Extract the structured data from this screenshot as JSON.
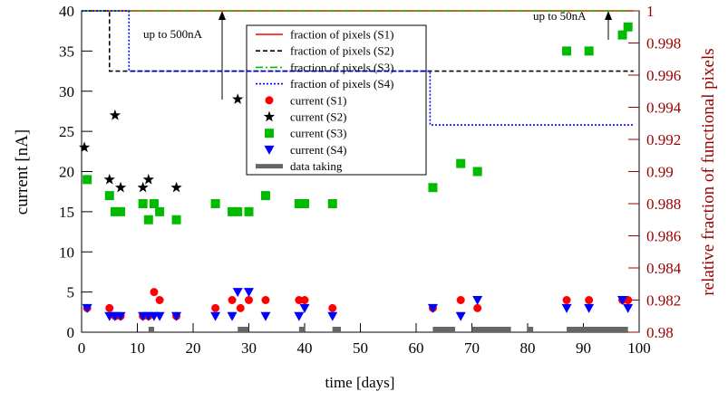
{
  "chart_data": {
    "type": "scatter",
    "xlabel": "time [days]",
    "ylabel": "current [nA]",
    "y2label": "relative fraction of functional pixels",
    "xlim": [
      0,
      100
    ],
    "xticks": [
      0,
      10,
      20,
      30,
      40,
      50,
      60,
      70,
      80,
      90,
      100
    ],
    "ylim": [
      0,
      40
    ],
    "yticks": [
      0,
      5,
      10,
      15,
      20,
      25,
      30,
      35,
      40
    ],
    "y2lim": [
      0.98,
      1
    ],
    "y2ticks": [
      0.98,
      0.982,
      0.984,
      0.986,
      0.988,
      0.99,
      0.992,
      0.994,
      0.996,
      0.998,
      1
    ],
    "y2color": "#990000",
    "annotations": [
      "up to 500nA",
      "up to 50nA"
    ],
    "series": [
      {
        "name": "fraction of pixels (S1)",
        "mark": "line",
        "dash": "solid",
        "color": "#ff0000",
        "axis": "y2",
        "x": [
          0,
          99
        ],
        "values": [
          1,
          1
        ]
      },
      {
        "name": "fraction of pixels (S2)",
        "mark": "line",
        "dash": "dashed",
        "color": "#000000",
        "axis": "y2",
        "x": [
          0,
          5,
          5,
          99
        ],
        "values": [
          1,
          1,
          0.99625,
          0.99625
        ]
      },
      {
        "name": "fraction of pixels (S3)",
        "mark": "line",
        "dash": "dashdot",
        "color": "#00bb00",
        "axis": "y2",
        "x": [
          0,
          99
        ],
        "values": [
          1,
          1
        ]
      },
      {
        "name": "fraction of pixels (S4)",
        "mark": "line",
        "dash": "dotted",
        "color": "#0000ff",
        "axis": "y2",
        "x": [
          0,
          8.5,
          8.5,
          62.5,
          62.5,
          99
        ],
        "values": [
          1,
          1,
          0.99625,
          0.99625,
          0.9929,
          0.9929
        ]
      },
      {
        "name": "current (S1)",
        "mark": "circle",
        "color": "#ff0000",
        "x": [
          1,
          5,
          6,
          7,
          11,
          12,
          13,
          14,
          17,
          24,
          27,
          28.5,
          30,
          33,
          39,
          40,
          45,
          63,
          68,
          71,
          87,
          91,
          97,
          98
        ],
        "values": [
          3,
          3,
          2,
          2,
          2,
          2,
          5,
          4,
          2,
          3,
          4,
          3,
          4,
          4,
          4,
          4,
          3,
          3,
          4,
          3,
          4,
          4,
          4,
          4
        ]
      },
      {
        "name": "current (S2)",
        "mark": "star",
        "color": "#000000",
        "x": [
          0.5,
          5,
          6,
          7,
          11,
          12,
          17,
          28
        ],
        "values": [
          23,
          19,
          27,
          18,
          18,
          19,
          18,
          29
        ]
      },
      {
        "name": "current (S3)",
        "mark": "square",
        "color": "#00bb00",
        "x": [
          1,
          5,
          6,
          7,
          11,
          12,
          13,
          14,
          17,
          24,
          27,
          28,
          30,
          33,
          39,
          40,
          45,
          63,
          68,
          71,
          87,
          91,
          97,
          98
        ],
        "values": [
          19,
          17,
          15,
          15,
          16,
          14,
          16,
          15,
          14,
          16,
          15,
          15,
          15,
          17,
          16,
          16,
          16,
          18,
          21,
          20,
          35,
          35,
          37,
          38
        ]
      },
      {
        "name": "current (S4)",
        "mark": "triangle",
        "color": "#0000ff",
        "x": [
          1,
          5,
          6,
          7,
          11,
          12,
          13,
          14,
          17,
          24,
          27,
          28,
          30,
          33,
          39,
          40,
          45,
          63,
          68,
          71,
          87,
          91,
          97,
          98
        ],
        "values": [
          3,
          2,
          2,
          2,
          2,
          2,
          2,
          2,
          2,
          2,
          2,
          5,
          5,
          2,
          2,
          3,
          2,
          3,
          2,
          4,
          3,
          3,
          4,
          3
        ]
      },
      {
        "name": "data taking",
        "mark": "interval",
        "color": "#666666",
        "intervals": [
          [
            12,
            13
          ],
          [
            28,
            30
          ],
          [
            39,
            40
          ],
          [
            45,
            46.5
          ],
          [
            63,
            67
          ],
          [
            70,
            77
          ],
          [
            80,
            81
          ],
          [
            87,
            98
          ]
        ]
      }
    ]
  }
}
